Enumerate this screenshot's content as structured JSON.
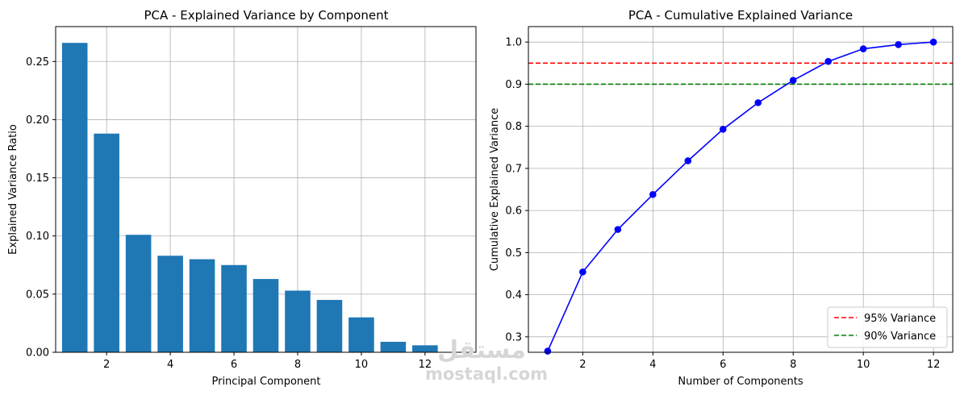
{
  "colors": {
    "bar": "#1f77b4",
    "line": "#0000ff",
    "grid": "#b0b0b0",
    "axis": "#000000",
    "threshold_95": "#ff0000",
    "threshold_90": "#008000"
  },
  "chart_data": [
    {
      "type": "bar",
      "title": "PCA - Explained Variance by Component",
      "xlabel": "Principal Component",
      "ylabel": "Explained Variance Ratio",
      "categories": [
        1,
        2,
        3,
        4,
        5,
        6,
        7,
        8,
        9,
        10,
        11,
        12
      ],
      "values": [
        0.266,
        0.188,
        0.101,
        0.083,
        0.08,
        0.075,
        0.063,
        0.053,
        0.045,
        0.03,
        0.009,
        0.006
      ],
      "xlim": [
        0.4,
        13.6
      ],
      "ylim": [
        0,
        0.28
      ],
      "xticks": [
        "2",
        "4",
        "6",
        "8",
        "10",
        "12"
      ],
      "yticks": [
        "0.00",
        "0.05",
        "0.10",
        "0.15",
        "0.20",
        "0.25"
      ],
      "grid": true
    },
    {
      "type": "line",
      "title": "PCA - Cumulative Explained Variance",
      "xlabel": "Number of Components",
      "ylabel": "Cumulative Explained Variance",
      "x": [
        1,
        2,
        3,
        4,
        5,
        6,
        7,
        8,
        9,
        10,
        11,
        12
      ],
      "series": [
        {
          "values": [
            0.266,
            0.454,
            0.555,
            0.638,
            0.718,
            0.793,
            0.856,
            0.909,
            0.954,
            0.984,
            0.994,
            1.0
          ]
        }
      ],
      "reference_lines": [
        {
          "name": "95% Variance",
          "y": 0.95,
          "style": "dashed",
          "color": "#ff0000"
        },
        {
          "name": "90% Variance",
          "y": 0.9,
          "style": "dashed",
          "color": "#008000"
        }
      ],
      "xlim": [
        0.45,
        12.55
      ],
      "ylim": [
        0.2633,
        1.0367
      ],
      "xticks": [
        "2",
        "4",
        "6",
        "8",
        "10",
        "12"
      ],
      "yticks": [
        "0.3",
        "0.4",
        "0.5",
        "0.6",
        "0.7",
        "0.8",
        "0.9",
        "1.0"
      ],
      "legend": "lower-right",
      "grid": true
    }
  ],
  "watermark": {
    "logo_text": "مستقل",
    "site_text": "mostaql.com"
  }
}
